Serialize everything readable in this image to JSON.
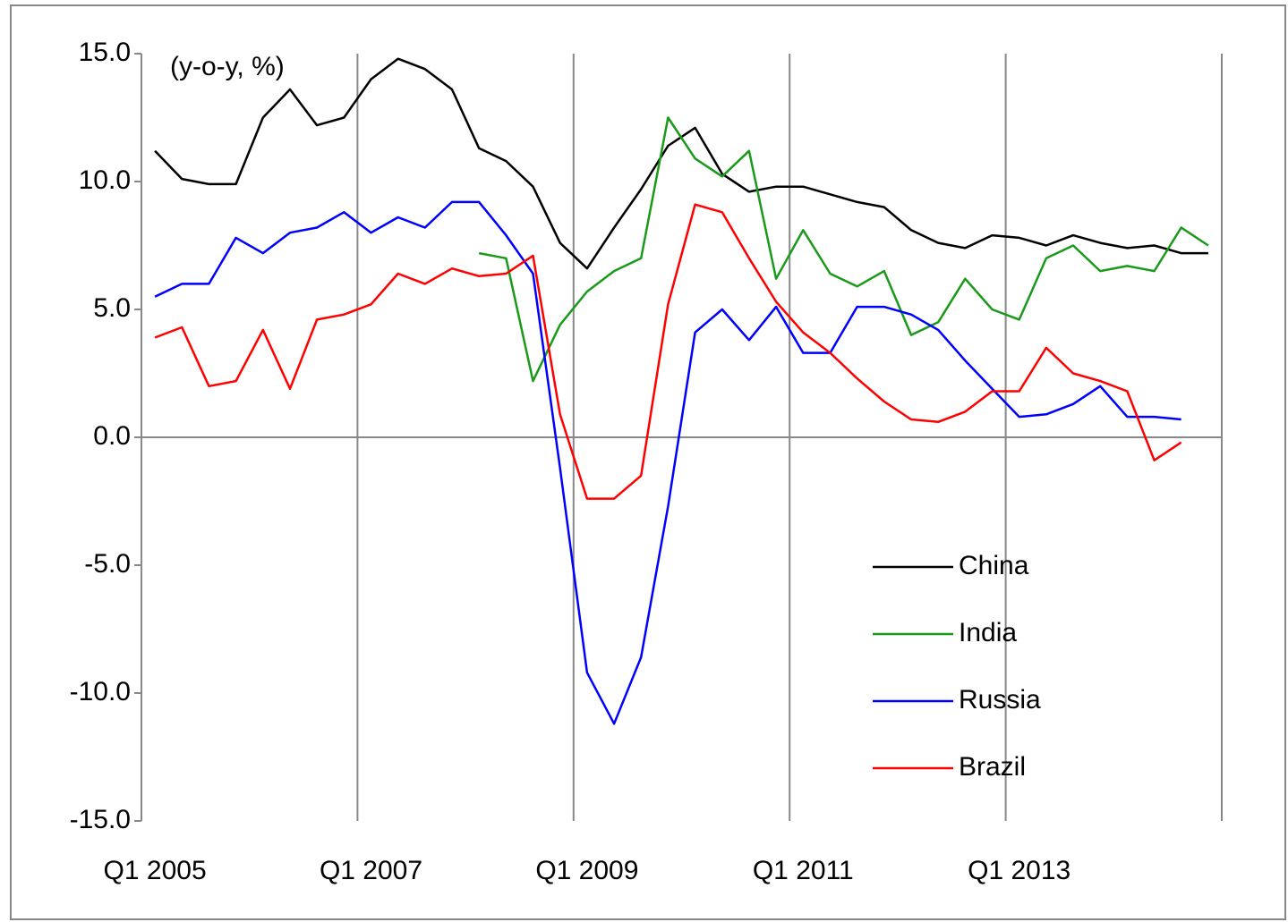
{
  "chart_data": {
    "type": "line",
    "annotation": "(y-o-y, %)",
    "categories": [
      "Q1 2005",
      null,
      null,
      null,
      null,
      null,
      null,
      null,
      "Q1 2007",
      null,
      null,
      null,
      null,
      null,
      null,
      null,
      "Q1 2009",
      null,
      null,
      null,
      null,
      null,
      null,
      null,
      "Q1 2011",
      null,
      null,
      null,
      null,
      null,
      null,
      null,
      "Q1 2013",
      null,
      null,
      null,
      null,
      null,
      null,
      null
    ],
    "series": [
      {
        "name": "China",
        "color": "#000000",
        "values": [
          11.2,
          10.1,
          9.9,
          9.9,
          12.5,
          13.6,
          12.2,
          12.5,
          14.0,
          14.8,
          14.4,
          13.6,
          11.3,
          10.8,
          9.8,
          7.6,
          6.6,
          8.2,
          9.7,
          11.4,
          12.1,
          10.3,
          9.6,
          9.8,
          9.8,
          9.5,
          9.2,
          9.0,
          8.1,
          7.6,
          7.4,
          7.9,
          7.8,
          7.5,
          7.9,
          7.6,
          7.4,
          7.5,
          7.2,
          7.2
        ]
      },
      {
        "name": "India",
        "color": "#1a9a1a",
        "values": [
          null,
          null,
          null,
          null,
          null,
          null,
          null,
          null,
          null,
          null,
          null,
          null,
          7.2,
          7.0,
          2.2,
          4.4,
          5.7,
          6.5,
          7.0,
          12.5,
          10.9,
          10.2,
          11.2,
          6.2,
          8.1,
          6.4,
          5.9,
          6.5,
          4.0,
          4.5,
          6.2,
          5.0,
          4.6,
          7.0,
          7.5,
          6.5,
          6.7,
          6.5,
          8.2,
          7.5
        ]
      },
      {
        "name": "Russia",
        "color": "#0000ff",
        "values": [
          5.5,
          6.0,
          6.0,
          7.8,
          7.2,
          8.0,
          8.2,
          8.8,
          8.0,
          8.6,
          8.2,
          9.2,
          9.2,
          7.9,
          6.4,
          -1.2,
          -9.2,
          -11.2,
          -8.6,
          -2.7,
          4.1,
          5.0,
          3.8,
          5.1,
          3.3,
          3.3,
          5.1,
          5.1,
          4.8,
          4.2,
          3.0,
          1.9,
          0.8,
          0.9,
          1.3,
          2.0,
          0.8,
          0.8,
          0.7,
          null
        ]
      },
      {
        "name": "Brazil",
        "color": "#ff0000",
        "values": [
          3.9,
          4.3,
          2.0,
          2.2,
          4.2,
          1.9,
          4.6,
          4.8,
          5.2,
          6.4,
          6.0,
          6.6,
          6.3,
          6.4,
          7.1,
          0.9,
          -2.4,
          -2.4,
          -1.5,
          5.2,
          9.1,
          8.8,
          7.0,
          5.3,
          4.1,
          3.3,
          2.3,
          1.4,
          0.7,
          0.6,
          1.0,
          1.8,
          1.8,
          3.5,
          2.5,
          2.2,
          1.8,
          -0.9,
          -0.2,
          null
        ]
      }
    ],
    "ylim": [
      -15,
      15
    ],
    "yticks": [
      {
        "value": -15,
        "label": "-15.0"
      },
      {
        "value": -10,
        "label": "-10.0"
      },
      {
        "value": -5,
        "label": "-5.0"
      },
      {
        "value": 0,
        "label": "0.0"
      },
      {
        "value": 5,
        "label": "5.0"
      },
      {
        "value": 10,
        "label": "10.0"
      },
      {
        "value": 15,
        "label": "15.0"
      }
    ],
    "negative_tick_color": "#ff0000",
    "legend": "right"
  }
}
